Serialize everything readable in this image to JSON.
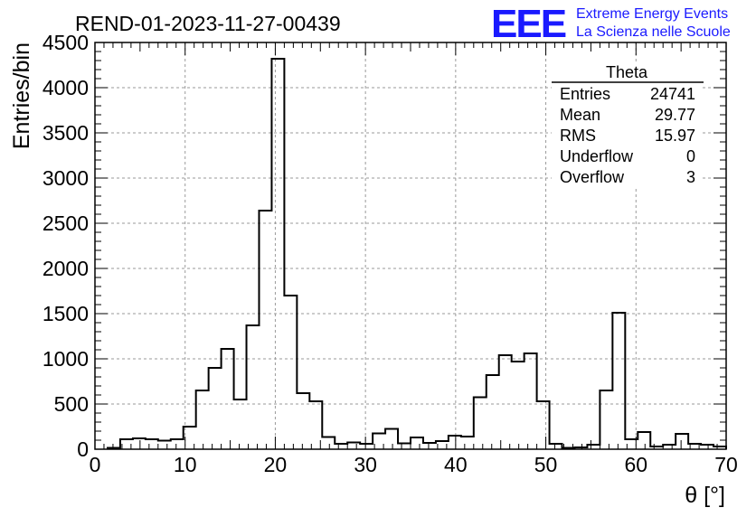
{
  "header": {
    "title": "REND-01-2023-11-27-00439",
    "logo_letters": "EEE",
    "logo_line1": "Extreme Energy Events",
    "logo_line2": "La Scienza nelle Scuole",
    "logo_color": "#1a1aff"
  },
  "stats": {
    "title": "Theta",
    "rows": [
      {
        "label": "Entries",
        "value": "24741"
      },
      {
        "label": "Mean",
        "value": "29.77"
      },
      {
        "label": "RMS",
        "value": "15.97"
      },
      {
        "label": "Underflow",
        "value": "0"
      },
      {
        "label": "Overflow",
        "value": "3"
      }
    ]
  },
  "chart_data": {
    "type": "histogram",
    "xlabel": "θ [°]",
    "ylabel": "Entries/bin",
    "xlim": [
      0,
      70
    ],
    "ylim": [
      0,
      4500
    ],
    "grid": true,
    "line_color": "#000000",
    "bin_width": 1.4,
    "bin_start": 1.4,
    "xticks": [
      0,
      10,
      20,
      30,
      40,
      50,
      60,
      70
    ],
    "yticks": [
      0,
      500,
      1000,
      1500,
      2000,
      2500,
      3000,
      3500,
      4000,
      4500
    ],
    "values": [
      15,
      110,
      120,
      110,
      95,
      110,
      250,
      650,
      900,
      1110,
      550,
      1370,
      2640,
      4320,
      1700,
      620,
      530,
      135,
      60,
      75,
      60,
      175,
      225,
      65,
      130,
      70,
      90,
      150,
      140,
      575,
      820,
      1040,
      970,
      1060,
      530,
      60,
      15,
      20,
      50,
      650,
      1510,
      110,
      190,
      30,
      50,
      170,
      60,
      50,
      30
    ]
  }
}
